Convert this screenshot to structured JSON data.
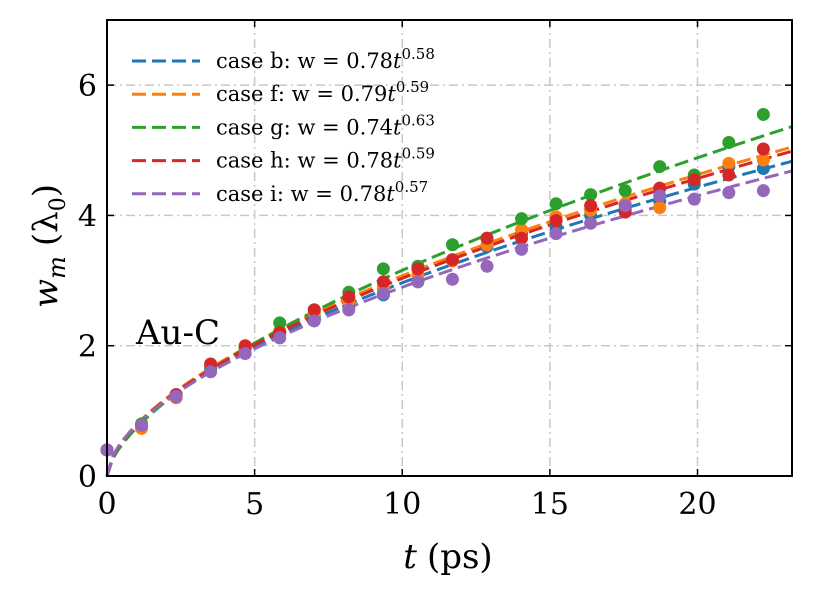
{
  "chart_data": {
    "type": "scatter",
    "xlabel_var": "t",
    "xlabel_unit": "(ps)",
    "ylabel_var": "w",
    "ylabel_sub": "m",
    "ylabel_unit": "(λ",
    "ylabel_unit_sub": "0",
    "ylabel_unit_close": ")",
    "xlim": [
      0,
      23.2
    ],
    "ylim": [
      0,
      7
    ],
    "xticks": [
      0,
      5,
      10,
      15,
      20
    ],
    "yticks": [
      0,
      2,
      4,
      6
    ],
    "grid": true,
    "legend_position": "top-left",
    "annotation": "Au-C",
    "series": [
      {
        "name": "case b",
        "label_prefix": "case b:  w = ",
        "coef": "0.78",
        "exp": "0.58",
        "color": "#1f77b4",
        "a": 0.78,
        "b": 0.58,
        "x": [
          0,
          1.17,
          2.34,
          3.51,
          4.68,
          5.85,
          7.02,
          8.19,
          9.36,
          10.53,
          11.7,
          12.87,
          14.04,
          15.21,
          16.38,
          17.55,
          18.72,
          19.89,
          21.06,
          22.23
        ],
        "y": [
          0.4,
          0.78,
          1.25,
          1.65,
          1.95,
          2.22,
          2.45,
          2.6,
          2.78,
          3.0,
          3.32,
          3.52,
          3.72,
          3.82,
          4.0,
          4.1,
          4.22,
          4.48,
          4.75,
          4.72
        ]
      },
      {
        "name": "case f",
        "label_prefix": "case f:  w = ",
        "coef": "0.79",
        "exp": "0.59",
        "color": "#ff7f0e",
        "a": 0.79,
        "b": 0.59,
        "x": [
          0,
          1.17,
          2.34,
          3.51,
          4.68,
          5.85,
          7.02,
          8.19,
          9.36,
          10.53,
          11.7,
          12.87,
          14.04,
          15.21,
          16.38,
          17.55,
          18.72,
          19.89,
          21.06,
          22.23
        ],
        "y": [
          0.4,
          0.73,
          1.2,
          1.68,
          1.95,
          2.22,
          2.5,
          2.68,
          2.88,
          3.08,
          3.3,
          3.55,
          3.78,
          3.98,
          4.08,
          4.18,
          4.12,
          4.55,
          4.8,
          4.85
        ]
      },
      {
        "name": "case g",
        "label_prefix": "case g:  w = ",
        "coef": "0.74",
        "exp": "0.63",
        "color": "#2ca02c",
        "a": 0.74,
        "b": 0.63,
        "x": [
          0,
          1.17,
          2.34,
          3.51,
          4.68,
          5.85,
          7.02,
          8.19,
          9.36,
          10.53,
          11.7,
          12.87,
          14.04,
          15.21,
          16.38,
          17.55,
          18.72,
          19.89,
          21.06,
          22.23
        ],
        "y": [
          0.4,
          0.8,
          1.22,
          1.65,
          1.98,
          2.35,
          2.55,
          2.82,
          3.18,
          3.22,
          3.55,
          3.65,
          3.95,
          4.18,
          4.32,
          4.38,
          4.75,
          4.62,
          5.12,
          5.55
        ]
      },
      {
        "name": "case h",
        "label_prefix": "case h:  w = ",
        "coef": "0.78",
        "exp": "0.59",
        "color": "#d62728",
        "a": 0.78,
        "b": 0.59,
        "x": [
          0,
          1.17,
          2.34,
          3.51,
          4.68,
          5.85,
          7.02,
          8.19,
          9.36,
          10.53,
          11.7,
          12.87,
          14.04,
          15.21,
          16.38,
          17.55,
          18.72,
          19.89,
          21.06,
          22.23
        ],
        "y": [
          0.4,
          0.78,
          1.25,
          1.72,
          2.0,
          2.2,
          2.55,
          2.75,
          2.98,
          3.18,
          3.32,
          3.65,
          3.65,
          3.92,
          4.15,
          4.05,
          4.42,
          4.55,
          4.62,
          5.02
        ]
      },
      {
        "name": "case i",
        "label_prefix": "case i:  w = ",
        "coef": "0.78",
        "exp": "0.57",
        "color": "#9467bd",
        "a": 0.78,
        "b": 0.57,
        "x": [
          0,
          1.17,
          2.34,
          3.51,
          4.68,
          5.85,
          7.02,
          8.19,
          9.36,
          10.53,
          11.7,
          12.87,
          14.04,
          15.21,
          16.38,
          17.55,
          18.72,
          19.89,
          21.06,
          22.23
        ],
        "y": [
          0.4,
          0.78,
          1.22,
          1.6,
          1.88,
          2.12,
          2.38,
          2.55,
          2.8,
          2.98,
          3.02,
          3.22,
          3.48,
          3.72,
          3.88,
          4.15,
          4.3,
          4.25,
          4.35,
          4.38
        ]
      }
    ]
  }
}
